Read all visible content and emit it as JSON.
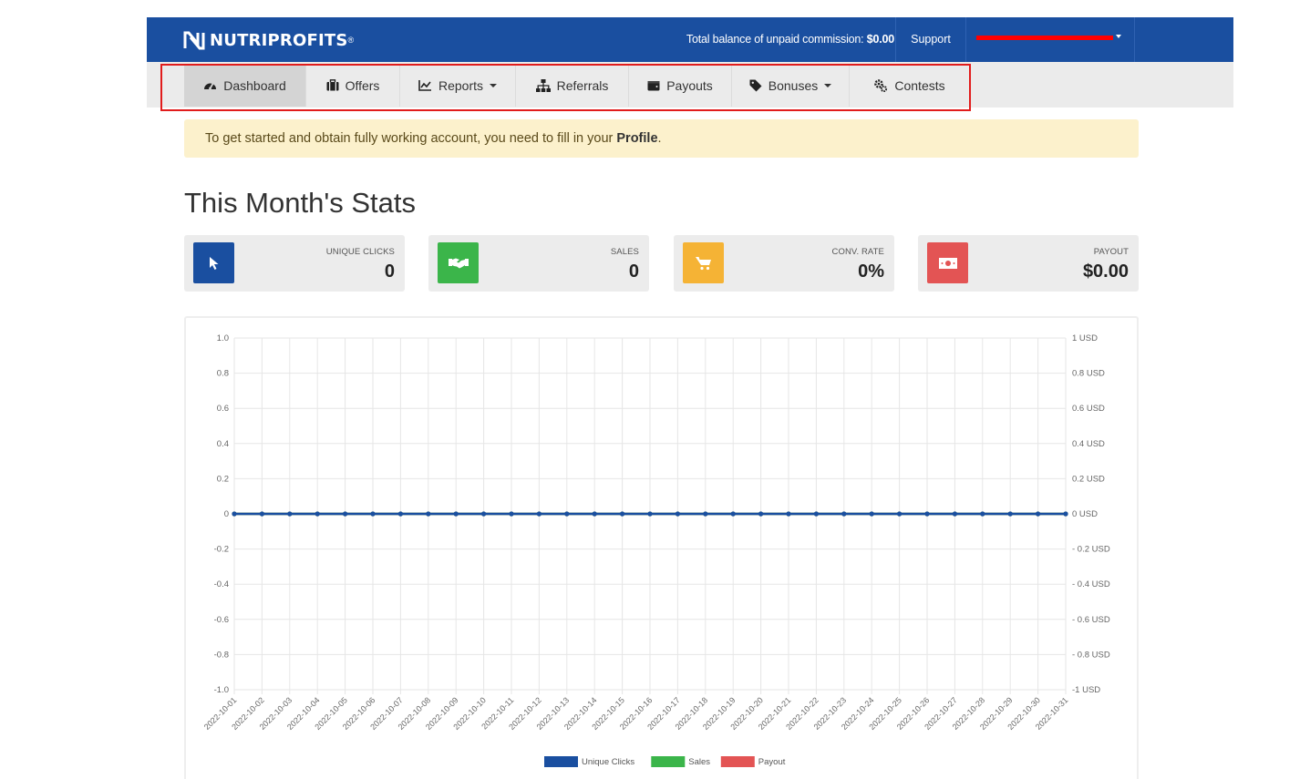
{
  "header": {
    "brand": "NUTRIPROFITS",
    "brand_mark": "®",
    "balance_label": "Total balance of unpaid commission:",
    "balance_value": "$0.00",
    "support_label": "Support"
  },
  "nav": {
    "items": [
      {
        "label": "Dashboard",
        "icon": "dashboard-icon",
        "active": true
      },
      {
        "label": "Offers",
        "icon": "briefcase-icon"
      },
      {
        "label": "Reports",
        "icon": "chart-line-icon",
        "dropdown": true
      },
      {
        "label": "Referrals",
        "icon": "sitemap-icon"
      },
      {
        "label": "Payouts",
        "icon": "wallet-icon"
      },
      {
        "label": "Bonuses",
        "icon": "tag-icon",
        "dropdown": true
      },
      {
        "label": "Contests",
        "icon": "cogs-icon"
      }
    ]
  },
  "alert": {
    "text": "To get started and obtain fully working account, you need to fill in your",
    "link": "Profile",
    "suffix": "."
  },
  "stats": {
    "title": "This Month's Stats",
    "cards": [
      {
        "label": "UNIQUE CLICKS",
        "value": "0",
        "icon": "cursor-icon",
        "color": "#1a4fa0"
      },
      {
        "label": "SALES",
        "value": "0",
        "icon": "handshake-icon",
        "color": "#3bb54a"
      },
      {
        "label": "CONV. RATE",
        "value": "0%",
        "icon": "cart-icon",
        "color": "#f5b335"
      },
      {
        "label": "PAYOUT",
        "value": "$0.00",
        "icon": "money-icon",
        "color": "#e35454"
      }
    ]
  },
  "chart_data": {
    "type": "line",
    "x": [
      "2022-10-01",
      "2022-10-02",
      "2022-10-03",
      "2022-10-04",
      "2022-10-05",
      "2022-10-06",
      "2022-10-07",
      "2022-10-08",
      "2022-10-09",
      "2022-10-10",
      "2022-10-11",
      "2022-10-12",
      "2022-10-13",
      "2022-10-14",
      "2022-10-15",
      "2022-10-16",
      "2022-10-17",
      "2022-10-18",
      "2022-10-19",
      "2022-10-20",
      "2022-10-21",
      "2022-10-22",
      "2022-10-23",
      "2022-10-24",
      "2022-10-25",
      "2022-10-26",
      "2022-10-27",
      "2022-10-28",
      "2022-10-29",
      "2022-10-30",
      "2022-10-31"
    ],
    "series": [
      {
        "name": "Unique Clicks",
        "color": "#1a4fa0",
        "values": [
          0,
          0,
          0,
          0,
          0,
          0,
          0,
          0,
          0,
          0,
          0,
          0,
          0,
          0,
          0,
          0,
          0,
          0,
          0,
          0,
          0,
          0,
          0,
          0,
          0,
          0,
          0,
          0,
          0,
          0,
          0
        ]
      },
      {
        "name": "Sales",
        "color": "#3bb54a",
        "values": [
          0,
          0,
          0,
          0,
          0,
          0,
          0,
          0,
          0,
          0,
          0,
          0,
          0,
          0,
          0,
          0,
          0,
          0,
          0,
          0,
          0,
          0,
          0,
          0,
          0,
          0,
          0,
          0,
          0,
          0,
          0
        ]
      },
      {
        "name": "Payout",
        "color": "#e35454",
        "values": [
          0,
          0,
          0,
          0,
          0,
          0,
          0,
          0,
          0,
          0,
          0,
          0,
          0,
          0,
          0,
          0,
          0,
          0,
          0,
          0,
          0,
          0,
          0,
          0,
          0,
          0,
          0,
          0,
          0,
          0,
          0
        ]
      }
    ],
    "ylim": [
      -1,
      1
    ],
    "y_ticks": [
      "1.0",
      "0.8",
      "0.6",
      "0.4",
      "0.2",
      "0",
      "-0.2",
      "-0.4",
      "-0.6",
      "-0.8",
      "-1.0"
    ],
    "y2_ticks": [
      "1 USD",
      "0.8 USD",
      "0.6 USD",
      "0.4 USD",
      "0.2 USD",
      "0 USD",
      "- 0.2 USD",
      "- 0.4 USD",
      "- 0.6 USD",
      "- 0.8 USD",
      "-1 USD"
    ],
    "grid": true,
    "legend": "bottom-center"
  }
}
